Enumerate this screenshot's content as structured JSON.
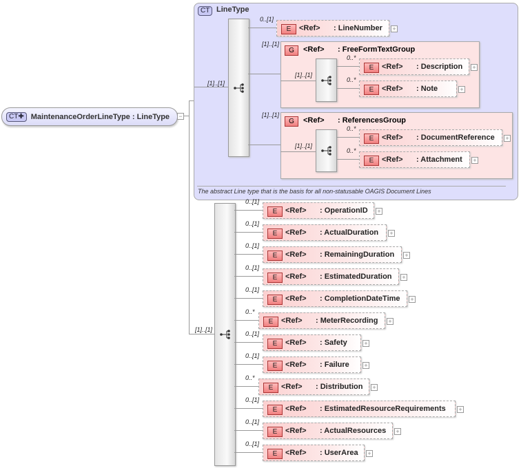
{
  "root": {
    "badge": "CT",
    "name": "MaintenanceOrderLineType",
    "base": ": LineType",
    "expander": "−"
  },
  "line_type": {
    "badge": "CT",
    "title": "LineType",
    "multiplicity": "[1]..[1]",
    "description": "The abstract Line type that is the basis for all non-statusable OAGIS Document Lines",
    "children": [
      {
        "kind": "E",
        "ref": "<Ref>",
        "name": ": LineNumber",
        "multiplicity": "0..[1]"
      },
      {
        "kind": "G",
        "ref": "<Ref>",
        "name": ": FreeFormTextGroup",
        "multiplicity": "[1]..[1]",
        "seq_multiplicity": "[1]..[1]",
        "children": [
          {
            "kind": "E",
            "ref": "<Ref>",
            "name": ": Description",
            "multiplicity": "0..*"
          },
          {
            "kind": "E",
            "ref": "<Ref>",
            "name": ": Note",
            "multiplicity": "0..*"
          }
        ]
      },
      {
        "kind": "G",
        "ref": "<Ref>",
        "name": ": ReferencesGroup",
        "multiplicity": "[1]..[1]",
        "seq_multiplicity": "[1]..[1]",
        "children": [
          {
            "kind": "E",
            "ref": "<Ref>",
            "name": ": DocumentReference",
            "multiplicity": "0..*"
          },
          {
            "kind": "E",
            "ref": "<Ref>",
            "name": ": Attachment",
            "multiplicity": "0..*"
          }
        ]
      }
    ]
  },
  "extension": {
    "multiplicity": "[1]..[1]",
    "children": [
      {
        "kind": "E",
        "ref": "<Ref>",
        "name": ": OperationID",
        "multiplicity": "0..[1]"
      },
      {
        "kind": "E",
        "ref": "<Ref>",
        "name": ": ActualDuration",
        "multiplicity": "0..[1]"
      },
      {
        "kind": "E",
        "ref": "<Ref>",
        "name": ": RemainingDuration",
        "multiplicity": "0..[1]"
      },
      {
        "kind": "E",
        "ref": "<Ref>",
        "name": ": EstimatedDuration",
        "multiplicity": "0..[1]"
      },
      {
        "kind": "E",
        "ref": "<Ref>",
        "name": ": CompletionDateTime",
        "multiplicity": "0..[1]"
      },
      {
        "kind": "E",
        "ref": "<Ref>",
        "name": ": MeterRecording",
        "multiplicity": "0..*"
      },
      {
        "kind": "E",
        "ref": "<Ref>",
        "name": ": Safety",
        "multiplicity": "0..[1]"
      },
      {
        "kind": "E",
        "ref": "<Ref>",
        "name": ": Failure",
        "multiplicity": "0..[1]"
      },
      {
        "kind": "E",
        "ref": "<Ref>",
        "name": ": Distribution",
        "multiplicity": "0..*"
      },
      {
        "kind": "E",
        "ref": "<Ref>",
        "name": ": EstimatedResourceRequirements",
        "multiplicity": "0..[1]"
      },
      {
        "kind": "E",
        "ref": "<Ref>",
        "name": ": ActualResources",
        "multiplicity": "0..[1]"
      },
      {
        "kind": "E",
        "ref": "<Ref>",
        "name": ": UserArea",
        "multiplicity": "0..[1]"
      }
    ]
  },
  "expand_symbol": "+",
  "colors": {
    "complex_type_bg": "#dedefc",
    "element_bg": "#fbd0d0",
    "element_badge": "#f08080"
  }
}
